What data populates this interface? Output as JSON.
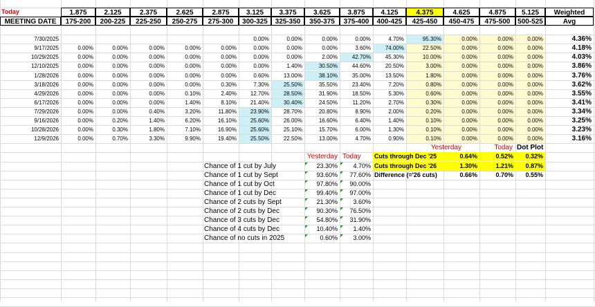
{
  "today_label": "Today",
  "meeting_date_label": "MEETING DATE",
  "weighted_label": "Weighted",
  "avg_label": "Avg",
  "rates": [
    "1.875",
    "2.125",
    "2.375",
    "2.625",
    "2.875",
    "3.125",
    "3.375",
    "3.625",
    "3.875",
    "4.125",
    "4.375",
    "4.625",
    "4.875",
    "5.125"
  ],
  "ranges": [
    "175-200",
    "200-225",
    "225-250",
    "250-275",
    "275-300",
    "300-325",
    "325-350",
    "350-375",
    "375-400",
    "400-425",
    "425-450",
    "450-475",
    "475-500",
    "500-525"
  ],
  "current_rate_col": 10,
  "meetings": [
    {
      "date": "7/30/2025",
      "vals": [
        "",
        "",
        "",
        "",
        "",
        "0.00%",
        "0.00%",
        "0.00%",
        "0.00%",
        "4.70%",
        "95.30%",
        "0.00%",
        "0.00%",
        "0.00%"
      ],
      "avg": "4.36%"
    },
    {
      "date": "9/17/2025",
      "vals": [
        "0.00%",
        "0.00%",
        "0.00%",
        "0.00%",
        "0.00%",
        "0.00%",
        "0.00%",
        "0.00%",
        "3.60%",
        "74.00%",
        "22.50%",
        "0.00%",
        "0.00%",
        "0.00%"
      ],
      "avg": "4.18%"
    },
    {
      "date": "10/29/2025",
      "vals": [
        "0.00%",
        "0.00%",
        "0.00%",
        "0.00%",
        "0.00%",
        "0.00%",
        "0.00%",
        "2.00%",
        "42.70%",
        "45.30%",
        "10.00%",
        "0.00%",
        "0.00%",
        "0.00%"
      ],
      "avg": "4.03%"
    },
    {
      "date": "12/10/2025",
      "vals": [
        "0.00%",
        "0.00%",
        "0.00%",
        "0.00%",
        "0.00%",
        "0.00%",
        "1.40%",
        "30.50%",
        "44.60%",
        "20.50%",
        "3.00%",
        "0.00%",
        "0.00%",
        "0.00%"
      ],
      "avg": "3.86%"
    },
    {
      "date": "1/28/2026",
      "vals": [
        "0.00%",
        "0.00%",
        "0.00%",
        "0.00%",
        "0.00%",
        "0.60%",
        "13.00%",
        "38.10%",
        "35.00%",
        "13.50%",
        "1.80%",
        "0.00%",
        "0.00%",
        "0.00%"
      ],
      "avg": "3.76%"
    },
    {
      "date": "3/18/2026",
      "vals": [
        "0.00%",
        "0.00%",
        "0.00%",
        "0.00%",
        "0.30%",
        "7.30%",
        "25.50%",
        "35.50%",
        "23.40%",
        "7.20%",
        "0.80%",
        "0.00%",
        "0.00%",
        "0.00%"
      ],
      "avg": "3.62%"
    },
    {
      "date": "4/29/2026",
      "vals": [
        "0.00%",
        "0.00%",
        "0.00%",
        "0.10%",
        "2.40%",
        "12.70%",
        "28.50%",
        "31.90%",
        "18.50%",
        "5.30%",
        "0.60%",
        "0.00%",
        "0.00%",
        "0.00%"
      ],
      "avg": "3.55%"
    },
    {
      "date": "6/17/2026",
      "vals": [
        "0.00%",
        "0.00%",
        "0.00%",
        "1.40%",
        "8.10%",
        "21.40%",
        "30.40%",
        "24.50%",
        "11.20%",
        "2.70%",
        "0.30%",
        "0.00%",
        "0.00%",
        "0.00%"
      ],
      "avg": "3.41%"
    },
    {
      "date": "7/29/2026",
      "vals": [
        "0.00%",
        "0.00%",
        "0.40%",
        "3.20%",
        "11.80%",
        "23.90%",
        "28.70%",
        "20.80%",
        "8.90%",
        "2.00%",
        "0.20%",
        "0.00%",
        "0.00%",
        "0.00%"
      ],
      "avg": "3.34%"
    },
    {
      "date": "9/16/2026",
      "vals": [
        "0.00%",
        "0.20%",
        "1.40%",
        "6.20%",
        "16.10%",
        "25.60%",
        "26.00%",
        "16.60%",
        "6.40%",
        "1.40%",
        "0.10%",
        "0.00%",
        "0.00%",
        "0.00%"
      ],
      "avg": "3.25%"
    },
    {
      "date": "10/28/2026",
      "vals": [
        "0.00%",
        "0.30%",
        "1.80%",
        "7.10%",
        "16.90%",
        "25.60%",
        "25.10%",
        "15.70%",
        "6.00%",
        "1.30%",
        "0.10%",
        "0.00%",
        "0.00%",
        "0.00%"
      ],
      "avg": "3.23%"
    },
    {
      "date": "12/9/2026",
      "vals": [
        "0.00%",
        "0.70%",
        "3.30%",
        "9.90%",
        "19.40%",
        "25.50%",
        "22.50%",
        "13.00%",
        "4.70%",
        "0.90%",
        "0.10%",
        "0.00%",
        "0.00%",
        "0.00%"
      ],
      "avg": "3.16%"
    }
  ],
  "highlight_blue": [
    [
      0,
      10
    ],
    [
      1,
      9
    ],
    [
      2,
      8
    ],
    [
      3,
      7
    ],
    [
      4,
      7
    ],
    [
      5,
      6
    ],
    [
      6,
      6
    ],
    [
      7,
      6
    ],
    [
      8,
      5
    ],
    [
      9,
      5
    ],
    [
      10,
      5
    ],
    [
      11,
      5
    ]
  ],
  "colors": {
    "today_red": "#e00000",
    "blue_fill": "#cdf0f6",
    "cream_fill": "#fefbd0",
    "yellow_fill": "#ffff00",
    "gridline": "#dadada",
    "comment_marker": "#1f9a1f"
  },
  "odds": {
    "yesterday_label": "Yesterday",
    "today_label": "Today",
    "rows": [
      {
        "label": "Chance of 1 cut by July",
        "yesterday": "23.30%",
        "today": "4.70%"
      },
      {
        "label": "Chance of 1 cut by Sept",
        "yesterday": "93.60%",
        "today": "77.60%"
      },
      {
        "label": "Chance of 1 cut by Oct",
        "yesterday": "97.80%",
        "today": "90.00%"
      },
      {
        "label": "Chance of 1 cut by Dec",
        "yesterday": "99.40%",
        "today": "97.00%"
      },
      {
        "label": "Chance of 2 cuts by Sept",
        "yesterday": "21.30%",
        "today": "3.60%"
      },
      {
        "label": "Chance of 2 cuts by Dec",
        "yesterday": "90.30%",
        "today": "76.50%"
      },
      {
        "label": "Chance of 3 cuts by Dec",
        "yesterday": "54.80%",
        "today": "31.90%"
      },
      {
        "label": "Chance of 4 cuts by Dec",
        "yesterday": "10.40%",
        "today": "1.40%"
      },
      {
        "label": "Chance of no cuts in 2025",
        "yesterday": "0.60%",
        "today": "3.00%"
      }
    ]
  },
  "cuts": {
    "yesterday_label": "Yesterday",
    "today_label": "Today",
    "dot_plot_label": "Dot Plot",
    "rows": [
      {
        "label": "Cuts through Dec '25",
        "yesterday": "0.64%",
        "today": "0.52%",
        "dot_plot": "0.32%",
        "highlight": true
      },
      {
        "label": "Cuts through Dec '26",
        "yesterday": "1.30%",
        "today": "1.21%",
        "dot_plot": "0.87%",
        "highlight": true
      },
      {
        "label": "Difference (='26 cuts)",
        "yesterday": "0.66%",
        "today": "0.70%",
        "dot_plot": "0.55%",
        "highlight": false
      }
    ]
  }
}
